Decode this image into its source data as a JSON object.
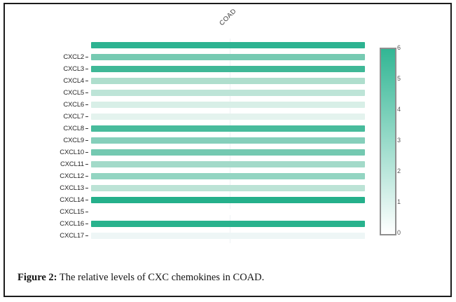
{
  "figure": {
    "caption_label": "Figure 2:",
    "caption_text": " The relative levels of CXC chemokines in COAD."
  },
  "chart_data": {
    "type": "heatmap",
    "title": "",
    "column_labels": [
      "COAD"
    ],
    "row_labels": [
      "",
      "CXCL2",
      "CXCL3",
      "CXCL4",
      "CXCL5",
      "CXCL6",
      "CXCL7",
      "CXCL8",
      "CXCL9",
      "CXCL10",
      "CXCL11",
      "CXCL12",
      "CXCL13",
      "CXCL14",
      "CXCL15",
      "CXCL16",
      "CXCL17"
    ],
    "rows": [
      {
        "label": "",
        "value": 5.8,
        "color": "#2db391"
      },
      {
        "label": "CXCL2",
        "value": 3.6,
        "color": "#76cab2"
      },
      {
        "label": "CXCL3",
        "value": 5.3,
        "color": "#3fb897"
      },
      {
        "label": "CXCL4",
        "value": 2.2,
        "color": "#aedecd"
      },
      {
        "label": "CXCL5",
        "value": 1.9,
        "color": "#bde4d7"
      },
      {
        "label": "CXCL6",
        "value": 1.1,
        "color": "#d8efe7"
      },
      {
        "label": "CXCL7",
        "value": 0.7,
        "color": "#e4f3ee"
      },
      {
        "label": "CXCL8",
        "value": 5.0,
        "color": "#48bb9c"
      },
      {
        "label": "CXCL9",
        "value": 3.4,
        "color": "#85cfbb"
      },
      {
        "label": "CXCL10",
        "value": 3.8,
        "color": "#74c9b1"
      },
      {
        "label": "CXCL11",
        "value": 2.5,
        "color": "#a3dac9"
      },
      {
        "label": "CXCL12",
        "value": 3.0,
        "color": "#93d5c2"
      },
      {
        "label": "CXCL13",
        "value": 1.8,
        "color": "#bce3d6"
      },
      {
        "label": "CXCL14",
        "value": 6.0,
        "color": "#25b08b"
      },
      {
        "label": "CXCL15",
        "value": 0.0,
        "color": "#ffffff"
      },
      {
        "label": "CXCL16",
        "value": 5.9,
        "color": "#29b28d"
      },
      {
        "label": "CXCL17",
        "value": 0.3,
        "color": "#eef6f6"
      }
    ],
    "colorbar": {
      "min": 0,
      "max": 6,
      "tick_labels": [
        "6",
        "5",
        "4",
        "3",
        "2",
        "1",
        "0"
      ],
      "top_color": "#32b694",
      "bottom_color": "#ffffff",
      "position": "right"
    },
    "legend": "none",
    "grid": "faint center vertical line"
  }
}
